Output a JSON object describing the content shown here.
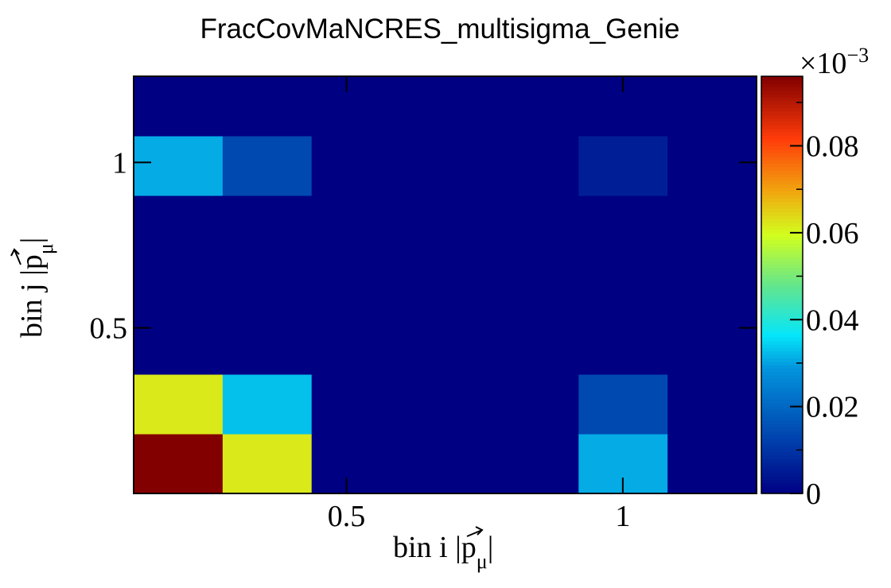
{
  "chart_data": {
    "type": "heatmap",
    "title": "FracCovMaNCRES_multisigma_Genie",
    "xlabel": {
      "main": "bin i |p",
      "sub": "μ",
      "tail": "|"
    },
    "ylabel": {
      "main": "bin j |p",
      "sub": "μ",
      "tail": "|"
    },
    "x_ticks": [
      {
        "value": 0.5,
        "label": "0.5"
      },
      {
        "value": 1.0,
        "label": "1"
      }
    ],
    "y_ticks": [
      {
        "value": 0.5,
        "label": "0.5"
      },
      {
        "value": 1.0,
        "label": "1"
      }
    ],
    "x_edges": [
      0.115,
      0.276,
      0.437,
      0.598,
      0.759,
      0.92,
      1.081,
      1.242
    ],
    "y_edges": [
      0.0,
      0.18,
      0.36,
      0.54,
      0.72,
      0.9,
      1.08,
      1.26
    ],
    "z": [
      [
        0.096,
        0.062,
        0.0,
        0.0,
        0.0,
        0.031,
        0.0
      ],
      [
        0.062,
        0.033,
        0.0,
        0.0,
        0.0,
        0.014,
        0.0
      ],
      [
        0.0,
        0.0,
        0.0,
        0.0,
        0.0,
        0.0,
        0.0
      ],
      [
        0.0,
        0.0,
        0.0,
        0.0,
        0.0,
        0.0,
        0.0
      ],
      [
        0.0,
        0.0,
        0.0,
        0.0,
        0.0,
        0.0,
        0.0
      ],
      [
        0.031,
        0.014,
        0.0,
        0.0,
        0.0,
        0.006,
        0.0
      ],
      [
        0.0,
        0.0,
        0.0,
        0.0,
        0.0,
        0.0,
        0.0
      ]
    ],
    "z_range": [
      0,
      0.096
    ],
    "colorbar": {
      "exponent_label": "×10",
      "exponent_power": "−3",
      "ticks": [
        {
          "value": 0,
          "label": "0"
        },
        {
          "value": 0.02,
          "label": "0.02"
        },
        {
          "value": 0.04,
          "label": "0.04"
        },
        {
          "value": 0.06,
          "label": "0.06"
        },
        {
          "value": 0.08,
          "label": "0.08"
        }
      ]
    }
  }
}
